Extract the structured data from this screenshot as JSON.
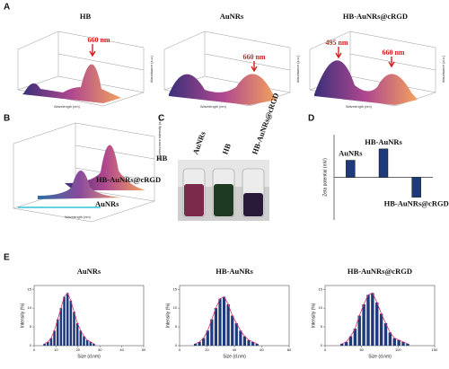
{
  "panels": {
    "A": {
      "label": "A",
      "x_label": "Wavelength (nm)",
      "y_label": "Absorbance (a.u.)",
      "plots": [
        {
          "title": "HB",
          "annotations": [
            "660 nm"
          ]
        },
        {
          "title": "AuNRs",
          "annotations": [
            "660 nm"
          ]
        },
        {
          "title": "HB-AuNRs@cRGD",
          "annotations": [
            "495 nm",
            "660 nm"
          ]
        }
      ]
    },
    "B": {
      "label": "B",
      "x_label": "Wavelength (nm)",
      "y_label": "Fluorescence intensity (a.u.)",
      "traces": [
        "HB",
        "HB-AuNRs@cRGD",
        "AuNRs"
      ]
    },
    "C": {
      "label": "C",
      "vials": [
        "AuNRs",
        "HB",
        "HB-AuNRs@cRGD"
      ]
    },
    "D": {
      "label": "D"
    },
    "E": {
      "label": "E"
    }
  },
  "chart_data": [
    {
      "type": "bar",
      "y_label": "Zeta potential (mV)",
      "categories": [
        "AuNRs",
        "HB-AuNRs",
        "HB-AuNRs@cRGD"
      ],
      "values": [
        12,
        20,
        -14
      ],
      "ylim": [
        -30,
        30
      ],
      "color": "#1f3a7a"
    },
    {
      "type": "histogram",
      "title": "AuNRs",
      "x_label": "Size (d.nm)",
      "y_label": "Intensity (%)",
      "bins": [
        4,
        5.5,
        7,
        8.5,
        10,
        11.5,
        13,
        14.5,
        16,
        17.5,
        19,
        20.5,
        22,
        23.5,
        25,
        26.5,
        28
      ],
      "values": [
        0.5,
        1,
        2,
        4,
        7,
        10,
        13,
        14,
        12,
        9,
        6,
        4,
        2.5,
        1.5,
        1,
        0.5
      ],
      "xlim": [
        0,
        50
      ],
      "xticks": [
        0,
        10,
        20,
        30,
        40,
        50
      ],
      "ylim": [
        0,
        16
      ],
      "yticks": [
        0,
        5,
        10,
        15
      ],
      "color": "#1f3a7a",
      "curve_color": "#d6336c"
    },
    {
      "type": "histogram",
      "title": "HB-AuNRs",
      "x_label": "Size (d.nm)",
      "y_label": "Intensity (%)",
      "bins": [
        10,
        13,
        16,
        19,
        22,
        25,
        28,
        31,
        34,
        37,
        40,
        43,
        46,
        49,
        52,
        55,
        58
      ],
      "values": [
        0.5,
        1,
        2,
        4,
        7,
        10,
        12.5,
        13,
        11,
        8,
        6,
        4,
        2.5,
        1.5,
        1,
        0.5
      ],
      "xlim": [
        0,
        80
      ],
      "xticks": [
        0,
        20,
        40,
        60,
        80
      ],
      "ylim": [
        0,
        16
      ],
      "yticks": [
        0,
        5,
        10,
        15
      ],
      "color": "#1f3a7a",
      "curve_color": "#d6336c"
    },
    {
      "type": "histogram",
      "title": "HB-AuNRs@cRGD",
      "x_label": "Size (d.nm)",
      "y_label": "Intensity (%)",
      "bins": [
        20,
        26,
        32,
        38,
        44,
        50,
        56,
        62,
        68,
        74,
        80,
        86,
        92,
        98,
        104,
        110,
        116
      ],
      "values": [
        0.5,
        1,
        2.5,
        4.5,
        8,
        11,
        13.5,
        14,
        11.5,
        8.5,
        6,
        3.5,
        2,
        1.5,
        1,
        0.5
      ],
      "xlim": [
        0,
        150
      ],
      "xticks": [
        0,
        50,
        100,
        150
      ],
      "ylim": [
        0,
        16
      ],
      "yticks": [
        0,
        5,
        10,
        15
      ],
      "color": "#1f3a7a",
      "curve_color": "#d6336c"
    }
  ]
}
